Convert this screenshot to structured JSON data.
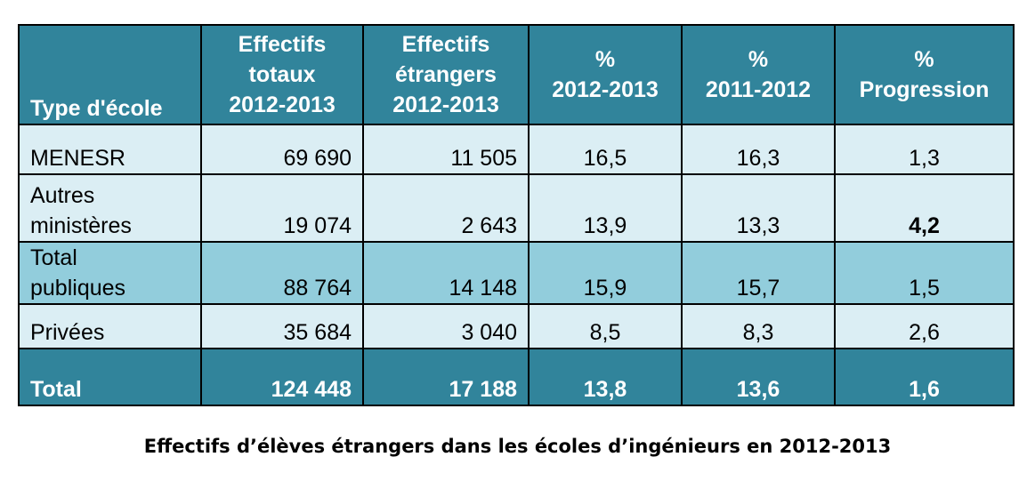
{
  "table": {
    "headers": {
      "type": "Type d'école",
      "totaux": [
        "Effectifs",
        "totaux",
        "2012-2013"
      ],
      "etrangers": [
        "Effectifs",
        "étrangers",
        "2012-2013"
      ],
      "pct1213": [
        "%",
        "2012-2013"
      ],
      "pct1112": [
        "%",
        "2011-2012"
      ],
      "progression": [
        "%",
        "Progression"
      ]
    },
    "rows": [
      {
        "type": [
          "MENESR"
        ],
        "totaux": "69 690",
        "etrangers": "11 505",
        "pct1213": "16,5",
        "pct1112": "16,3",
        "progression": "1,3"
      },
      {
        "type": [
          "Autres",
          "ministères"
        ],
        "totaux": "19 074",
        "etrangers": "2 643",
        "pct1213": "13,9",
        "pct1112": "13,3",
        "progression": "4,2"
      },
      {
        "type": [
          "Total",
          "publiques"
        ],
        "totaux": "88 764",
        "etrangers": "14 148",
        "pct1213": "15,9",
        "pct1112": "15,7",
        "progression": "1,5"
      },
      {
        "type": [
          "Privées"
        ],
        "totaux": "35 684",
        "etrangers": "3 040",
        "pct1213": "8,5",
        "pct1112": "8,3",
        "progression": "2,6"
      },
      {
        "type": [
          "Total"
        ],
        "totaux": "124 448",
        "etrangers": "17 188",
        "pct1213": "13,8",
        "pct1112": "13,6",
        "progression": "1,6"
      }
    ]
  },
  "caption": "Effectifs d’élèves étrangers dans les écoles d’ingénieurs en 2012-2013",
  "colors": {
    "header_bg": "#31849b",
    "light_row_bg": "#dbeef4",
    "mid_row_bg": "#92cddc",
    "total_row_bg": "#31849b"
  }
}
